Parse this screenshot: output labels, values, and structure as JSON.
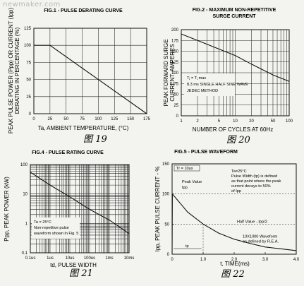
{
  "watermark": "newmaker.com",
  "charts": [
    {
      "id": "fig1",
      "figure_caption": "图 19",
      "chart_data": {
        "type": "line",
        "title": "FIG.1 - PULSE DERATING CURVE",
        "xlabel": "Ta, AMBIENT TEMPERATURE, (°C)",
        "ylabel": "PEAK PULSE POWER (Ppp) OR CURRENT (Ipp) DERATING IN PERCENTAGE (%)",
        "xlim": [
          0,
          175
        ],
        "ylim": [
          0,
          125
        ],
        "x_ticks": [
          "0",
          "25",
          "50",
          "75",
          "100",
          "125",
          "150",
          "175"
        ],
        "y_ticks": [
          "0",
          "25",
          "50",
          "75",
          "100",
          "125"
        ],
        "grid": true,
        "series": [
          {
            "x": [
              0,
              25,
              175
            ],
            "y": [
              100,
              100,
              0
            ]
          }
        ]
      }
    },
    {
      "id": "fig2",
      "figure_caption": "图 20",
      "chart_data": {
        "type": "line",
        "title": "FIG.2 - MAXIMUM NON-REPETITIVE SURGE CURRENT",
        "xlabel": "NUMBER OF CYCLES AT 60Hz",
        "ylabel": "PEAK FORWARD SURGE CURRENT, AMPERES",
        "x_scale": "log",
        "xlim": [
          1,
          100
        ],
        "ylim": [
          0,
          200
        ],
        "x_ticks": [
          "1",
          "2",
          "5",
          "10",
          "20",
          "50",
          "100"
        ],
        "y_ticks": [
          "0",
          "25",
          "50",
          "75",
          "100",
          "125",
          "150",
          "175",
          "200"
        ],
        "grid": true,
        "annotations": [
          "Tⱼ = Tⱼ max",
          "8.3 ms SINGLE HALF SINE WAVE",
          "JEDEC METHOD"
        ],
        "series": [
          {
            "x": [
              1,
              2,
              5,
              10,
              20,
              50,
              100
            ],
            "y": [
              190,
              175,
              155,
              140,
              120,
              95,
              80
            ]
          }
        ]
      }
    },
    {
      "id": "fig4",
      "figure_caption": "图 21",
      "chart_data": {
        "type": "line",
        "title": "FIG.4 - PULSE RATING CURVE",
        "xlabel": "td, PULSE WIDTH",
        "ylabel": "Ppp, PEAK POWER (kW)",
        "x_scale": "log",
        "y_scale": "log",
        "x_ticks": [
          "0.1us",
          "1us",
          "10us",
          "100us",
          "1ms",
          "10ms"
        ],
        "y_ticks": [
          "0.1",
          "1",
          "10",
          "100"
        ],
        "grid": true,
        "annotations": [
          "Ta = 25°C",
          "Non-repetitive pulse",
          "waveform shown in Fig. 5"
        ],
        "series": [
          {
            "x_us": [
              0.1,
              1,
              10,
              100,
              1000,
              10000
            ],
            "y": [
              55,
              20,
              8,
              3,
              1.3,
              0.45
            ]
          }
        ]
      }
    },
    {
      "id": "fig5",
      "figure_caption": "图 22",
      "chart_data": {
        "type": "line",
        "title": "FIG.5 - PULSE WAVEFORM",
        "xlabel": "t, TIME(ms)",
        "ylabel": "Ipp, PEAK PULSE CURRENT - %",
        "xlim": [
          0,
          4.0
        ],
        "ylim": [
          0,
          150
        ],
        "x_ticks": [
          "0",
          "1.0",
          "2.0",
          "3.0",
          "4.0"
        ],
        "y_ticks": [
          "0",
          "50",
          "100",
          "150"
        ],
        "grid": false,
        "annotations": [
          "Tr = 10us",
          "Peak Value",
          "Ipp",
          "Ta=25°C",
          "Pulse Width (tp) is defined",
          "as that point where the peak",
          "current decays to 50%",
          "of Ipp",
          "Half Value - Ipp/2",
          "10X1000 Waveform",
          "as defined by R.E.A.",
          "tp"
        ],
        "series": [
          {
            "x": [
              0,
              0.01,
              0.5,
              1.0,
              1.5,
              2.0,
              2.5,
              3.0,
              3.5,
              4.0
            ],
            "y": [
              0,
              100,
              70,
              50,
              35,
              25,
              18,
              12,
              9,
              6
            ]
          }
        ]
      }
    }
  ]
}
